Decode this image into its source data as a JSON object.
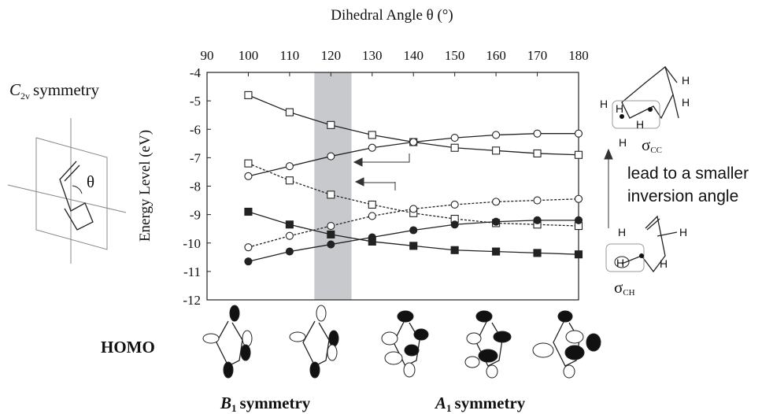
{
  "chart_data": {
    "type": "line",
    "x_label": "Dihedral Angle θ (°)",
    "y_label": "Energy Level (eV)",
    "xlim": [
      90,
      180
    ],
    "xticks": [
      90,
      100,
      110,
      120,
      130,
      140,
      150,
      160,
      170,
      180
    ],
    "ylim": [
      -12,
      -4
    ],
    "yticks": [
      -4,
      -5,
      -6,
      -7,
      -8,
      -9,
      -10,
      -11,
      -12
    ],
    "shaded_region": [
      116,
      125
    ],
    "shaded_color": "#c8c9cd",
    "x": [
      100,
      110,
      120,
      130,
      140,
      150,
      160,
      170,
      180
    ],
    "series": [
      {
        "color": "#222222",
        "marker": "open-square",
        "dash": "solid",
        "values": [
          -4.8,
          -5.4,
          -5.85,
          -6.2,
          -6.45,
          -6.65,
          -6.75,
          -6.85,
          -6.9
        ]
      },
      {
        "color": "#222222",
        "marker": "open-circle",
        "dash": "solid",
        "values": [
          -7.65,
          -7.3,
          -6.95,
          -6.65,
          -6.45,
          -6.3,
          -6.2,
          -6.15,
          -6.15
        ]
      },
      {
        "color": "#222222",
        "marker": "open-square",
        "dash": "dotted",
        "values": [
          -7.2,
          -7.8,
          -8.3,
          -8.65,
          -8.95,
          -9.15,
          -9.3,
          -9.35,
          -9.4
        ]
      },
      {
        "color": "#222222",
        "marker": "open-circle",
        "dash": "dotted",
        "values": [
          -10.15,
          -9.75,
          -9.4,
          -9.05,
          -8.8,
          -8.65,
          -8.55,
          -8.5,
          -8.45
        ]
      },
      {
        "color": "#222222",
        "marker": "filled-square",
        "dash": "solid",
        "values": [
          -8.9,
          -9.35,
          -9.7,
          -9.95,
          -10.1,
          -10.25,
          -10.3,
          -10.35,
          -10.4
        ]
      },
      {
        "color": "#222222",
        "marker": "filled-circle",
        "dash": "solid",
        "values": [
          -10.65,
          -10.3,
          -10.05,
          -9.8,
          -9.55,
          -9.35,
          -9.25,
          -9.2,
          -9.2
        ]
      }
    ],
    "annotations": {
      "c2v": {
        "symbol": "C",
        "subscript": "2v",
        "text": "symmetry"
      },
      "theta": "θ",
      "homo": "HOMO",
      "b1": {
        "symbol": "B",
        "subscript": "1",
        "text": "symmetry"
      },
      "a1": {
        "symbol": "A",
        "subscript": "1",
        "text": "symmetry"
      },
      "lead_line1": "lead to a smaller",
      "lead_line2": "inversion angle",
      "sigma_cc": {
        "symbol": "σ",
        "subscript": "CC"
      },
      "sigma_ch": {
        "symbol": "σ",
        "subscript": "CH"
      },
      "h": "H"
    }
  }
}
